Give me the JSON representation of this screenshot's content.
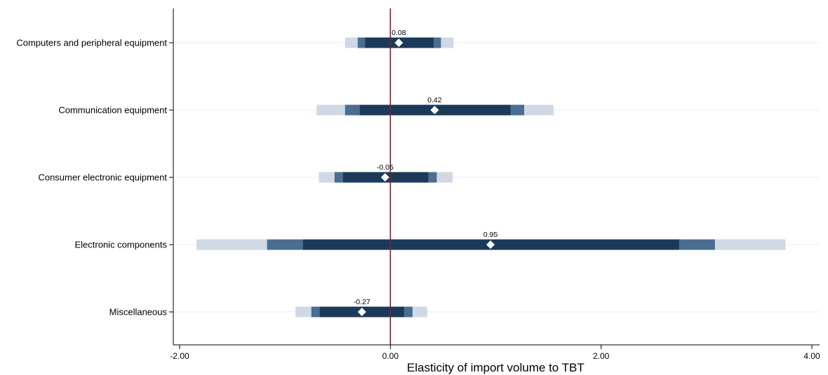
{
  "chart_data": {
    "type": "coefficient_plot",
    "xlabel": "Elasticity of import volume to TBT",
    "xlim": [
      -2.0,
      4.0
    ],
    "xticks": [
      -2.0,
      0.0,
      2.0,
      4.0
    ],
    "xtick_labels": [
      "-2.00",
      "0.00",
      "2.00",
      "4.00"
    ],
    "reference_line": 0.0,
    "grid": "horizontal",
    "colors": {
      "ci_inner": "#1b3a59",
      "ci_middle": "#4a6e92",
      "ci_outer": "#d0d9e3",
      "point": "#ffffff",
      "reference": "#8b1a2b",
      "grid": "#e6eef4"
    },
    "categories": [
      "Computers and peripheral equipment",
      "Communication equipment",
      "Consumer electronic equipment",
      "Electronic components",
      "Miscellaneous"
    ],
    "series": [
      {
        "estimates": [
          0.08,
          0.42,
          -0.05,
          0.95,
          -0.27
        ],
        "estimate_labels": [
          "0.08",
          "0.42",
          "-0.05",
          "0.95",
          "-0.27"
        ],
        "ci_inner": [
          [
            -0.24,
            0.41
          ],
          [
            -0.29,
            1.14
          ],
          [
            -0.45,
            0.36
          ],
          [
            -0.83,
            2.74
          ],
          [
            -0.67,
            0.13
          ]
        ],
        "ci_middle": [
          [
            -0.31,
            0.48
          ],
          [
            -0.43,
            1.27
          ],
          [
            -0.53,
            0.44
          ],
          [
            -1.17,
            3.08
          ],
          [
            -0.75,
            0.21
          ]
        ],
        "ci_outer": [
          [
            -0.43,
            0.6
          ],
          [
            -0.7,
            1.55
          ],
          [
            -0.68,
            0.59
          ],
          [
            -1.84,
            3.75
          ],
          [
            -0.9,
            0.35
          ]
        ]
      }
    ]
  }
}
